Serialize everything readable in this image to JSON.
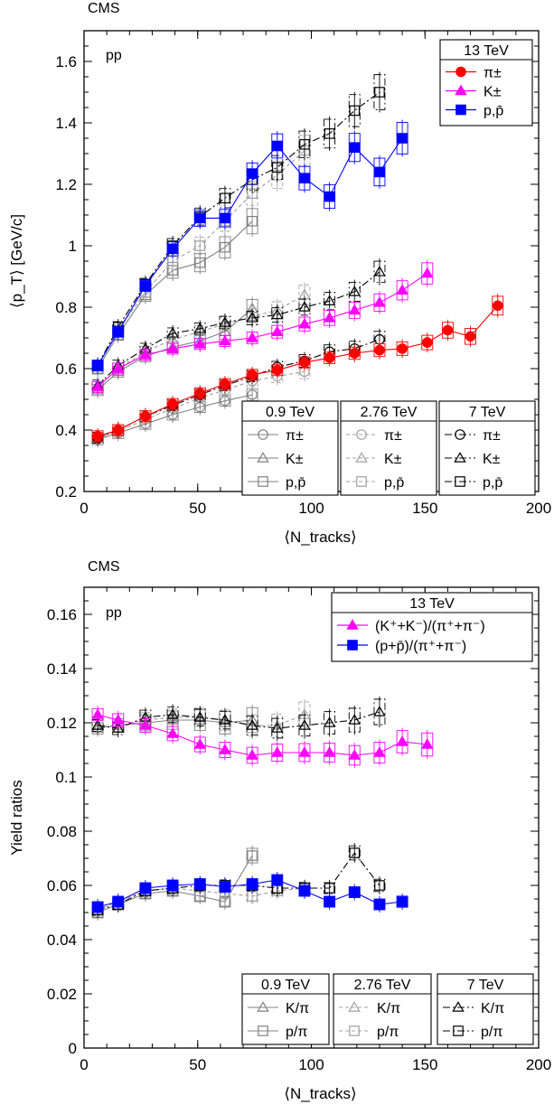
{
  "chart_data": [
    {
      "type": "scatter",
      "experiment": "CMS",
      "system": "pp",
      "xlabel": "⟨N_tracks⟩",
      "ylabel": "⟨p_T⟩ [GeV/c]",
      "xlim": [
        0,
        200
      ],
      "ylim": [
        0.2,
        1.7
      ],
      "xticks": [
        "0",
        "50",
        "100",
        "150",
        "200"
      ],
      "yticks": [
        "0.2",
        "0.4",
        "0.6",
        "0.8",
        "1",
        "1.2",
        "1.4",
        "1.6"
      ],
      "legend_main": {
        "title": "13 TeV",
        "entries": [
          "π±",
          "K±",
          "p,p̄"
        ]
      },
      "legend_energies": [
        {
          "title": "0.9 TeV",
          "entries": [
            "π±",
            "K±",
            "p,p̄"
          ]
        },
        {
          "title": "2.76 TeV",
          "entries": [
            "π±",
            "K±",
            "p,p̄"
          ]
        },
        {
          "title": "7 TeV",
          "entries": [
            "π±",
            "K±",
            "p,p̄"
          ]
        }
      ],
      "series": [
        {
          "energy": "13 TeV",
          "particle": "π±",
          "color": "#ff0000",
          "marker": "circle-filled",
          "x": [
            6,
            15,
            27,
            39,
            51,
            62,
            74,
            85,
            97,
            108,
            119,
            130,
            140,
            151,
            160,
            170,
            182
          ],
          "y": [
            0.38,
            0.4,
            0.445,
            0.485,
            0.52,
            0.55,
            0.58,
            0.595,
            0.62,
            0.635,
            0.65,
            0.66,
            0.665,
            0.685,
            0.725,
            0.705,
            0.805
          ]
        },
        {
          "energy": "13 TeV",
          "particle": "K±",
          "color": "#ff00ff",
          "marker": "triangle-filled",
          "x": [
            6,
            15,
            27,
            39,
            51,
            62,
            74,
            85,
            97,
            108,
            119,
            130,
            140,
            151
          ],
          "y": [
            0.54,
            0.6,
            0.645,
            0.665,
            0.68,
            0.69,
            0.7,
            0.72,
            0.745,
            0.765,
            0.79,
            0.815,
            0.855,
            0.91
          ]
        },
        {
          "energy": "13 TeV",
          "particle": "p,p̄",
          "color": "#0000ff",
          "marker": "square-filled",
          "x": [
            6,
            15,
            27,
            39,
            51,
            62,
            74,
            85,
            97,
            108,
            119,
            130,
            140
          ],
          "y": [
            0.61,
            0.72,
            0.87,
            0.99,
            1.09,
            1.09,
            1.235,
            1.325,
            1.22,
            1.16,
            1.32,
            1.24,
            1.35
          ]
        },
        {
          "energy": "0.9 TeV",
          "particle": "π±",
          "color": "#808080",
          "marker": "circle-open",
          "x": [
            6,
            15,
            27,
            39,
            51,
            62,
            74
          ],
          "y": [
            0.37,
            0.39,
            0.42,
            0.45,
            0.475,
            0.495,
            0.515
          ]
        },
        {
          "energy": "0.9 TeV",
          "particle": "K±",
          "color": "#808080",
          "marker": "triangle-open",
          "x": [
            6,
            15,
            27,
            39,
            51,
            62,
            74
          ],
          "y": [
            0.53,
            0.59,
            0.64,
            0.67,
            0.69,
            0.72,
            0.795
          ]
        },
        {
          "energy": "0.9 TeV",
          "particle": "p,p̄",
          "color": "#808080",
          "marker": "square-open",
          "x": [
            6,
            15,
            27,
            39,
            51,
            62,
            74
          ],
          "y": [
            0.6,
            0.71,
            0.84,
            0.92,
            0.945,
            0.995,
            1.08
          ]
        },
        {
          "energy": "2.76 TeV",
          "particle": "π±",
          "color": "#a0a0a0",
          "marker": "circle-open",
          "x": [
            6,
            15,
            27,
            39,
            51,
            62,
            74,
            85,
            97
          ],
          "y": [
            0.375,
            0.395,
            0.435,
            0.47,
            0.505,
            0.53,
            0.56,
            0.575,
            0.59
          ]
        },
        {
          "energy": "2.76 TeV",
          "particle": "K±",
          "color": "#a0a0a0",
          "marker": "triangle-open",
          "x": [
            6,
            15,
            27,
            39,
            51,
            62,
            74,
            85,
            97
          ],
          "y": [
            0.54,
            0.6,
            0.655,
            0.695,
            0.72,
            0.745,
            0.77,
            0.79,
            0.84
          ]
        },
        {
          "energy": "2.76 TeV",
          "particle": "p,p̄",
          "color": "#a0a0a0",
          "marker": "square-open",
          "x": [
            6,
            15,
            27,
            39,
            51,
            62,
            74,
            85,
            97
          ],
          "y": [
            0.61,
            0.725,
            0.85,
            0.95,
            1.0,
            1.08,
            1.17,
            1.23,
            1.31
          ]
        },
        {
          "energy": "7 TeV",
          "particle": "π±",
          "color": "#000000",
          "marker": "circle-open",
          "x": [
            6,
            15,
            27,
            39,
            51,
            62,
            74,
            85,
            97,
            108,
            119,
            130
          ],
          "y": [
            0.375,
            0.4,
            0.445,
            0.48,
            0.515,
            0.545,
            0.575,
            0.605,
            0.625,
            0.655,
            0.665,
            0.695
          ]
        },
        {
          "energy": "7 TeV",
          "particle": "K±",
          "color": "#000000",
          "marker": "triangle-open",
          "x": [
            6,
            15,
            27,
            39,
            51,
            62,
            74,
            85,
            97,
            108,
            119,
            130
          ],
          "y": [
            0.545,
            0.61,
            0.665,
            0.715,
            0.73,
            0.75,
            0.765,
            0.775,
            0.8,
            0.82,
            0.85,
            0.915
          ]
        },
        {
          "energy": "7 TeV",
          "particle": "p,p̄",
          "color": "#000000",
          "marker": "square-open",
          "x": [
            6,
            15,
            27,
            39,
            51,
            62,
            74,
            85,
            97,
            108,
            119,
            130
          ],
          "y": [
            0.61,
            0.735,
            0.875,
            1.0,
            1.095,
            1.155,
            1.215,
            1.255,
            1.33,
            1.365,
            1.44,
            1.5
          ]
        }
      ]
    },
    {
      "type": "scatter",
      "experiment": "CMS",
      "system": "pp",
      "xlabel": "⟨N_tracks⟩",
      "ylabel": "Yield ratios",
      "xlim": [
        0,
        200
      ],
      "ylim": [
        0,
        0.17
      ],
      "xticks": [
        "0",
        "50",
        "100",
        "150",
        "200"
      ],
      "yticks": [
        "0",
        "0.02",
        "0.04",
        "0.06",
        "0.08",
        "0.1",
        "0.12",
        "0.14",
        "0.16"
      ],
      "legend_main": {
        "title": "13 TeV",
        "entries": [
          "(K⁺+K⁻)/(π⁺+π⁻)",
          "(p+p̄)/(π⁺+π⁻)"
        ]
      },
      "legend_energies": [
        {
          "title": "0.9 TeV",
          "entries": [
            "K/π",
            "p/π"
          ]
        },
        {
          "title": "2.76 TeV",
          "entries": [
            "K/π",
            "p/π"
          ]
        },
        {
          "title": "7 TeV",
          "entries": [
            "K/π",
            "p/π"
          ]
        }
      ],
      "series": [
        {
          "energy": "13 TeV",
          "particle": "K/π",
          "color": "#ff00ff",
          "marker": "triangle-filled",
          "x": [
            6,
            15,
            27,
            39,
            51,
            62,
            74,
            85,
            97,
            108,
            119,
            130,
            140,
            151
          ],
          "y": [
            0.123,
            0.121,
            0.119,
            0.116,
            0.112,
            0.11,
            0.108,
            0.109,
            0.109,
            0.109,
            0.108,
            0.109,
            0.113,
            0.112
          ]
        },
        {
          "energy": "13 TeV",
          "particle": "p/π",
          "color": "#0000ff",
          "marker": "square-filled",
          "x": [
            6,
            15,
            27,
            39,
            51,
            62,
            74,
            85,
            97,
            108,
            119,
            130,
            140
          ],
          "y": [
            0.052,
            0.054,
            0.059,
            0.06,
            0.0605,
            0.0595,
            0.0605,
            0.062,
            0.058,
            0.054,
            0.0575,
            0.053,
            0.054
          ]
        },
        {
          "energy": "0.9 TeV",
          "particle": "K/π",
          "color": "#808080",
          "marker": "triangle-open",
          "x": [
            6,
            15,
            27,
            39,
            51,
            62,
            74
          ],
          "y": [
            0.118,
            0.119,
            0.12,
            0.121,
            0.121,
            0.12,
            0.121
          ]
        },
        {
          "energy": "0.9 TeV",
          "particle": "p/π",
          "color": "#808080",
          "marker": "square-open",
          "x": [
            6,
            15,
            27,
            39,
            51,
            62,
            74
          ],
          "y": [
            0.05,
            0.053,
            0.057,
            0.058,
            0.056,
            0.054,
            0.071
          ]
        },
        {
          "energy": "2.76 TeV",
          "particle": "K/π",
          "color": "#a0a0a0",
          "marker": "triangle-open",
          "x": [
            6,
            15,
            27,
            39,
            51,
            62,
            74,
            85,
            97
          ],
          "y": [
            0.119,
            0.119,
            0.121,
            0.122,
            0.122,
            0.121,
            0.119,
            0.119,
            0.123
          ]
        },
        {
          "energy": "2.76 TeV",
          "particle": "p/π",
          "color": "#a0a0a0",
          "marker": "square-open",
          "x": [
            6,
            15,
            27,
            39,
            51,
            62,
            74,
            85,
            97
          ],
          "y": [
            0.051,
            0.054,
            0.058,
            0.059,
            0.058,
            0.057,
            0.056,
            0.058,
            0.059
          ]
        },
        {
          "energy": "7 TeV",
          "particle": "K/π",
          "color": "#000000",
          "marker": "triangle-open",
          "x": [
            6,
            15,
            27,
            39,
            51,
            62,
            74,
            85,
            97,
            108,
            119,
            130
          ],
          "y": [
            0.119,
            0.118,
            0.122,
            0.123,
            0.122,
            0.121,
            0.119,
            0.118,
            0.119,
            0.12,
            0.121,
            0.124
          ]
        },
        {
          "energy": "7 TeV",
          "particle": "p/π",
          "color": "#000000",
          "marker": "square-open",
          "x": [
            6,
            15,
            27,
            39,
            51,
            62,
            74,
            85,
            97,
            108,
            119,
            130
          ],
          "y": [
            0.051,
            0.053,
            0.058,
            0.059,
            0.06,
            0.06,
            0.06,
            0.059,
            0.059,
            0.059,
            0.072,
            0.06
          ]
        }
      ]
    }
  ]
}
